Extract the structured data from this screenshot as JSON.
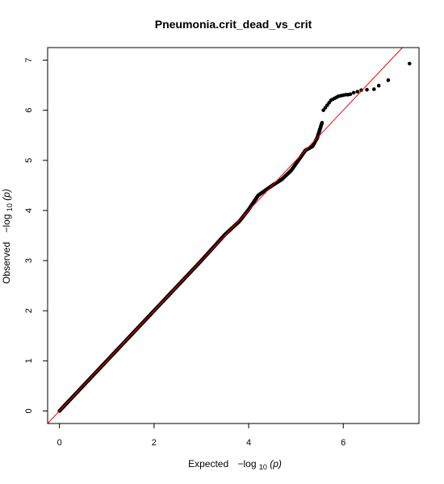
{
  "chart_data": {
    "type": "scatter",
    "title": "Pneumonia.crit_dead_vs_crit",
    "xlabel": "Expected",
    "ylabel": "Observed",
    "axis_expr": {
      "prefix": "−log",
      "sub": "10",
      "arg": "(p)"
    },
    "xlim": [
      -0.25,
      7.6
    ],
    "ylim": [
      -0.25,
      7.25
    ],
    "x_ticks": [
      0,
      2,
      4,
      6
    ],
    "y_ticks": [
      0,
      1,
      2,
      3,
      4,
      5,
      6,
      7
    ],
    "reference_line": {
      "slope": 1,
      "intercept": 0,
      "color": "#ff0000"
    },
    "point_color": "#000000",
    "curve": [
      [
        0,
        0
      ],
      [
        1.0,
        1.0
      ],
      [
        2.0,
        2.0
      ],
      [
        3.0,
        3.0
      ],
      [
        3.5,
        3.52
      ],
      [
        3.8,
        3.78
      ],
      [
        4.0,
        4.02
      ],
      [
        4.2,
        4.3
      ],
      [
        4.5,
        4.5
      ],
      [
        4.7,
        4.62
      ],
      [
        4.9,
        4.8
      ],
      [
        5.05,
        5.0
      ],
      [
        5.2,
        5.2
      ],
      [
        5.35,
        5.28
      ],
      [
        5.45,
        5.45
      ],
      [
        5.55,
        5.75
      ]
    ],
    "tail_points": [
      [
        5.58,
        6.0
      ],
      [
        5.62,
        6.05
      ],
      [
        5.66,
        6.1
      ],
      [
        5.7,
        6.15
      ],
      [
        5.74,
        6.2
      ],
      [
        5.78,
        6.22
      ],
      [
        5.82,
        6.24
      ],
      [
        5.86,
        6.26
      ],
      [
        5.9,
        6.28
      ],
      [
        5.95,
        6.29
      ],
      [
        6.0,
        6.3
      ],
      [
        6.05,
        6.31
      ],
      [
        6.1,
        6.31
      ],
      [
        6.15,
        6.32
      ],
      [
        6.22,
        6.35
      ],
      [
        6.3,
        6.37
      ],
      [
        6.38,
        6.4
      ],
      [
        6.5,
        6.41
      ],
      [
        6.65,
        6.42
      ],
      [
        6.75,
        6.49
      ],
      [
        6.95,
        6.6
      ],
      [
        7.4,
        6.93
      ]
    ]
  }
}
